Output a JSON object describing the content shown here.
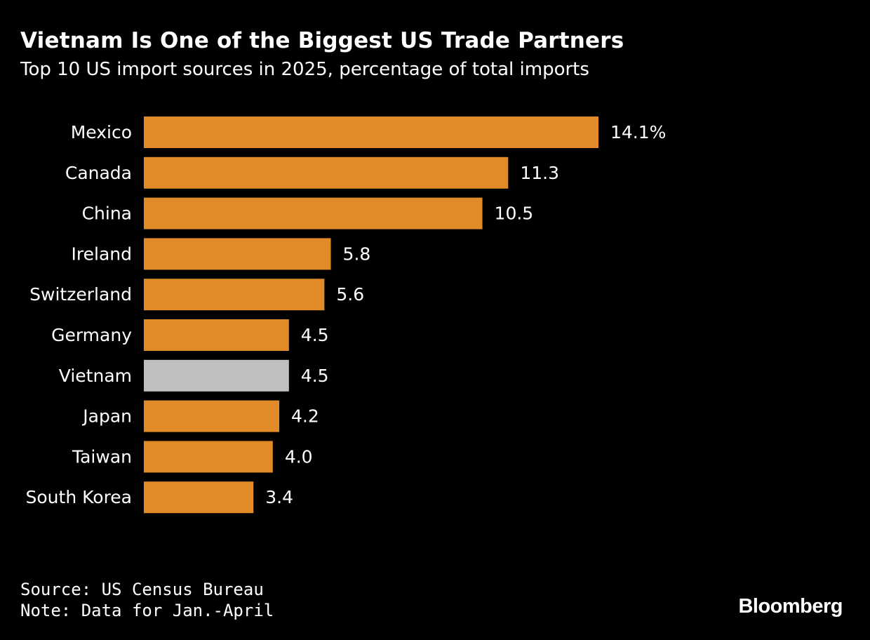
{
  "chart_data": {
    "type": "bar",
    "orientation": "horizontal",
    "title": "Vietnam Is One of the Biggest US Trade Partners",
    "subtitle": "Top 10 US import sources in 2025, percentage of total imports",
    "categories": [
      "Mexico",
      "Canada",
      "China",
      "Ireland",
      "Switzerland",
      "Germany",
      "Vietnam",
      "Japan",
      "Taiwan",
      "South Korea"
    ],
    "values": [
      14.1,
      11.3,
      10.5,
      5.8,
      5.6,
      4.5,
      4.5,
      4.2,
      4.0,
      3.4
    ],
    "value_labels": [
      "14.1%",
      "11.3",
      "10.5",
      "5.8",
      "5.6",
      "4.5",
      "4.5",
      "4.2",
      "4.0",
      "3.4"
    ],
    "highlight": "Vietnam",
    "xlim": [
      0,
      14.1
    ],
    "xlabel": "",
    "ylabel": "",
    "grid": false
  },
  "colors": {
    "background": "#000000",
    "bar": "#e08a28",
    "highlight_bar": "#c0c0c0",
    "text": "#ffffff"
  },
  "footer": {
    "source": "Source: US Census Bureau",
    "note": "Note: Data for Jan.-April"
  },
  "brand": "Bloomberg"
}
